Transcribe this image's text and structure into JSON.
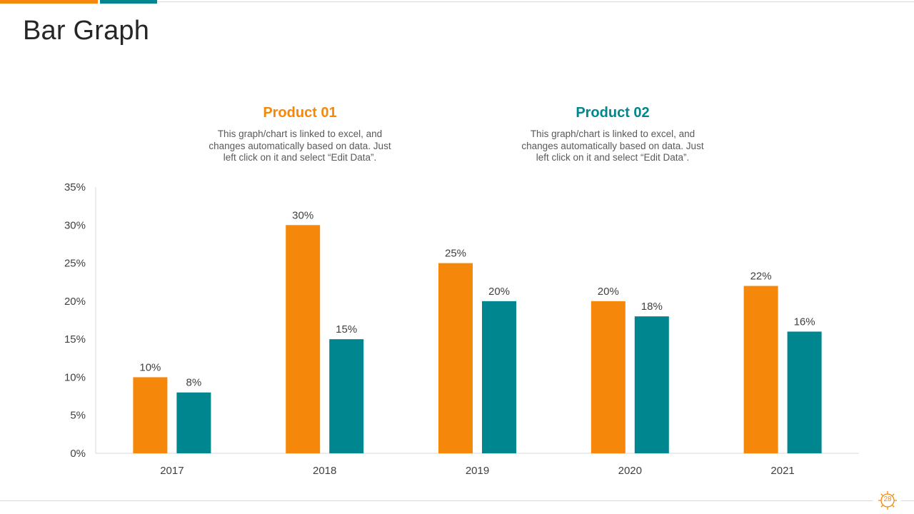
{
  "slide": {
    "title": "Bar Graph",
    "page_number": "28"
  },
  "products": [
    {
      "name": "Product 01",
      "color": "#f5880a",
      "description": "This graph/chart is linked to excel, and changes automatically based on data. Just left click on it and select “Edit Data”."
    },
    {
      "name": "Product 02",
      "color": "#00868f",
      "description": "This graph/chart is linked to excel, and changes automatically based on data. Just left click on it and select “Edit Data”."
    }
  ],
  "chart_data": {
    "type": "bar",
    "title": "",
    "xlabel": "",
    "ylabel": "",
    "categories": [
      "2017",
      "2018",
      "2019",
      "2020",
      "2021"
    ],
    "series": [
      {
        "name": "Product 01",
        "color": "#f5880a",
        "values": [
          10,
          30,
          25,
          20,
          22
        ],
        "labels": [
          "10%",
          "30%",
          "25%",
          "20%",
          "22%"
        ]
      },
      {
        "name": "Product 02",
        "color": "#00868f",
        "values": [
          8,
          15,
          20,
          18,
          16
        ],
        "labels": [
          "8%",
          "15%",
          "20%",
          "18%",
          "16%"
        ]
      }
    ],
    "ylim": [
      0,
      35
    ],
    "yticks": [
      0,
      5,
      10,
      15,
      20,
      25,
      30,
      35
    ],
    "ytick_labels": [
      "0%",
      "5%",
      "10%",
      "15%",
      "20%",
      "25%",
      "30%",
      "35%"
    ],
    "grid": false,
    "legend": "top"
  }
}
